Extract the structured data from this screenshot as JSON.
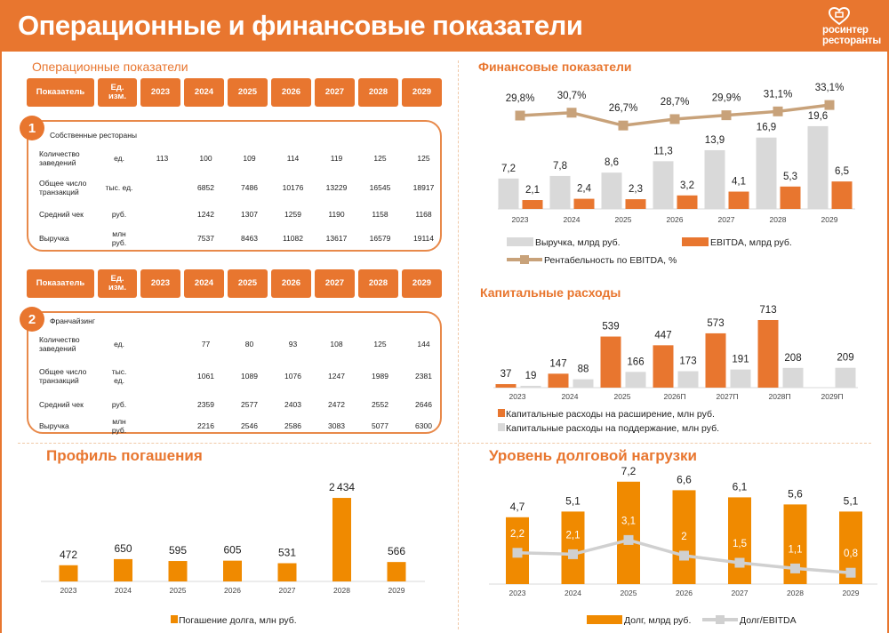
{
  "header": {
    "title": "Операционные и финансовые показатели",
    "logo_text": [
      "росинтер",
      "ресторанты"
    ]
  },
  "colors": {
    "accent": "#E8762F",
    "bar_orange": "#F08A00",
    "gray": "#D9D9D9",
    "line_tan": "#C8A27A",
    "line_gray": "#D0D0D0"
  },
  "operational": {
    "title": "Операционные показатели",
    "tables": [
      {
        "number": "1",
        "header": [
          "Показатель",
          "Ед.\nизм.",
          "2023",
          "2024",
          "2025",
          "2026",
          "2027",
          "2028",
          "2029"
        ],
        "subtitle": "Собственные рестораны",
        "rows": [
          {
            "label": "Количество\nзаведений",
            "unit": "ед.",
            "values": [
              "113",
              "100",
              "109",
              "114",
              "119",
              "125",
              "125"
            ]
          },
          {
            "label": "Общее число\nтранзакций",
            "unit": "тыс. ед.",
            "values": [
              "",
              "6852",
              "7486",
              "10176",
              "13229",
              "16545",
              "18917"
            ]
          },
          {
            "label": "Средний чек",
            "unit": "руб.",
            "values": [
              "",
              "1242",
              "1307",
              "1259",
              "1190",
              "1158",
              "1168"
            ]
          },
          {
            "label": "Выручка",
            "unit": "млн\nруб.",
            "values": [
              "",
              "7537",
              "8463",
              "11082",
              "13617",
              "16579",
              "19114"
            ]
          }
        ]
      },
      {
        "number": "2",
        "header": [
          "Показатель",
          "Ед.\nизм.",
          "2023",
          "2024",
          "2025",
          "2026",
          "2027",
          "2028",
          "2029"
        ],
        "subtitle": "Франчайзинг",
        "rows": [
          {
            "label": "Количество\nзаведений",
            "unit": "ед.",
            "values": [
              "",
              "77",
              "80",
              "93",
              "108",
              "125",
              "144"
            ]
          },
          {
            "label": "Общее число\nтранзакций",
            "unit": "тыс.\nед.",
            "values": [
              "",
              "1061",
              "1089",
              "1076",
              "1247",
              "1989",
              "2381"
            ]
          },
          {
            "label": "Средний чек",
            "unit": "руб.",
            "values": [
              "",
              "2359",
              "2577",
              "2403",
              "2472",
              "2552",
              "2646"
            ]
          },
          {
            "label": "Выручка",
            "unit": "млн\nруб.",
            "values": [
              "",
              "2216",
              "2546",
              "2586",
              "3083",
              "5077",
              "6300"
            ]
          }
        ]
      }
    ]
  },
  "chart_data": [
    {
      "id": "financial",
      "title": "Финансовые показатели",
      "type": "bar",
      "categories": [
        "2023",
        "2024",
        "2025",
        "2026",
        "2027",
        "2028",
        "2029"
      ],
      "series": [
        {
          "name": "Выручка, млрд руб.",
          "values": [
            7.2,
            7.8,
            8.6,
            11.3,
            13.9,
            16.9,
            19.6
          ],
          "color": "#D9D9D9"
        },
        {
          "name": "EBITDA, млрд руб.",
          "values": [
            2.1,
            2.4,
            2.3,
            3.2,
            4.1,
            5.3,
            6.5
          ],
          "color": "#E8762F"
        }
      ],
      "line_series": {
        "name": "Рентабельность по EBITDA, %",
        "values": [
          29.8,
          30.7,
          26.7,
          28.7,
          29.9,
          31.1,
          33.1
        ],
        "unit": "%",
        "color": "#C8A27A"
      },
      "legend": "bottom",
      "grid": false
    },
    {
      "id": "capex",
      "title": "Капитальные расходы",
      "type": "bar",
      "categories": [
        "2023",
        "2024",
        "2025",
        "2026П",
        "2027П",
        "2028П",
        "2029П"
      ],
      "series": [
        {
          "name": "Капитальные расходы на расширение, млн руб.",
          "values": [
            37,
            147,
            539,
            447,
            573,
            713,
            null
          ],
          "color": "#E8762F"
        },
        {
          "name": "Капитальные расходы на поддержание, млн руб.",
          "values": [
            19,
            88,
            166,
            173,
            191,
            208,
            209
          ],
          "color": "#D9D9D9"
        }
      ],
      "legend": "bottom-left",
      "grid": false
    },
    {
      "id": "repayment",
      "title": "Профиль погашения",
      "type": "bar",
      "categories": [
        "2023",
        "2024",
        "2025",
        "2026",
        "2027",
        "2028",
        "2029"
      ],
      "series": [
        {
          "name": "Погашение долга, млн руб.",
          "values": [
            472,
            650,
            595,
            605,
            531,
            2434,
            566
          ],
          "color": "#F08A00"
        }
      ],
      "legend": "bottom",
      "grid": false
    },
    {
      "id": "debt",
      "title": "Уровень долговой нагрузки",
      "type": "bar",
      "categories": [
        "2023",
        "2024",
        "2025",
        "2026",
        "2027",
        "2028",
        "2029"
      ],
      "series": [
        {
          "name": "Долг, млрд руб.",
          "values": [
            4.7,
            5.1,
            7.2,
            6.6,
            6.1,
            5.6,
            5.1
          ],
          "color": "#F08A00"
        }
      ],
      "line_series": {
        "name": "Долг/EBITDA",
        "values": [
          2.2,
          2.1,
          3.1,
          2,
          1.5,
          1.1,
          0.8
        ],
        "unit": "",
        "color": "#D0D0D0"
      },
      "legend": "bottom",
      "grid": false
    }
  ]
}
